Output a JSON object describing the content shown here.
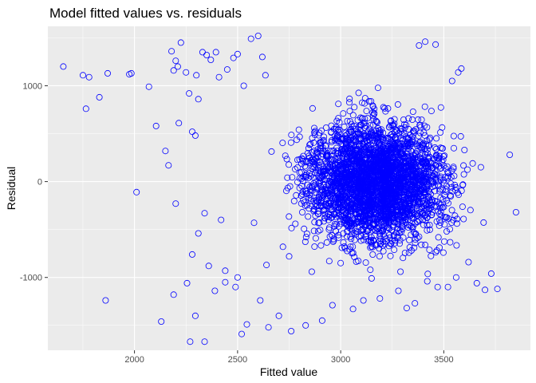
{
  "chart_data": {
    "type": "scatter",
    "title": "Model fitted values vs. residuals",
    "xlabel": "Fitted value",
    "ylabel": "Residual",
    "xlim": [
      1580,
      3920
    ],
    "ylim": [
      -1760,
      1620
    ],
    "x_ticks": [
      2000,
      2500,
      3000,
      3500
    ],
    "y_ticks": [
      -1000,
      0,
      1000
    ],
    "x_tick_labels": [
      "2000",
      "2500",
      "3000",
      "3500"
    ],
    "y_tick_labels": [
      "-1000",
      "0",
      "1000"
    ],
    "grid": true,
    "legend": "none",
    "colors": {
      "point": "#0000ff",
      "panel": "#ebebeb",
      "grid_major": "#ffffff",
      "tick": "#333333"
    },
    "point_style": "open-circle",
    "series": [
      {
        "x": [
          1655,
          1750,
          1765,
          1780,
          1830,
          1870,
          1975,
          1985,
          2010,
          2070,
          2105,
          2150,
          2165,
          2180,
          2190,
          2200,
          2210,
          2215,
          2225,
          2250,
          2265,
          2280,
          2295,
          2300,
          2310,
          2330,
          2350,
          2370,
          2395,
          2410,
          2450,
          2480,
          2500,
          2530,
          2565,
          2600,
          2620,
          2635,
          1860,
          2130,
          2190,
          2255,
          2270,
          2295,
          2340,
          2390,
          2440,
          2490,
          2520,
          2545,
          2610,
          2650,
          2700,
          2760,
          2830,
          2910,
          2960,
          3060,
          3110,
          3190,
          3280,
          3320,
          3360,
          3420,
          3470,
          3520,
          3560,
          3620,
          3660,
          3700,
          3730,
          3760,
          3820,
          3850,
          3585,
          3570,
          3540,
          3600,
          3640,
          3680,
          3460,
          3410,
          3380,
          2310,
          2580,
          2720,
          2860,
          3000,
          3150,
          3290,
          2360,
          2500,
          2440,
          2640,
          2750,
          2280,
          2200,
          2340,
          2420
        ],
        "y": [
          1200,
          1110,
          760,
          1090,
          880,
          1130,
          1120,
          1130,
          -110,
          990,
          580,
          320,
          170,
          1360,
          1160,
          1260,
          1200,
          610,
          1450,
          1140,
          920,
          520,
          480,
          1110,
          860,
          1350,
          1320,
          1270,
          1350,
          1090,
          1170,
          1290,
          1330,
          1000,
          1490,
          1520,
          1300,
          1110,
          -1240,
          -1460,
          -1180,
          -1060,
          -1670,
          -1400,
          -1670,
          -1140,
          -1050,
          -1100,
          -1590,
          -1490,
          -1240,
          -1520,
          -1400,
          -1560,
          -1500,
          -1450,
          -1290,
          -1330,
          -1240,
          -1220,
          -1140,
          -1320,
          -1270,
          -1040,
          -1100,
          -1100,
          -1000,
          -840,
          -1060,
          -1130,
          -960,
          -1120,
          280,
          -320,
          1180,
          1140,
          1050,
          330,
          190,
          150,
          1430,
          1460,
          1420,
          -540,
          -430,
          -680,
          -940,
          -850,
          -1010,
          -940,
          -880,
          -1000,
          -930,
          -870,
          -780,
          -760,
          -230,
          -330,
          -400
        ]
      }
    ]
  }
}
